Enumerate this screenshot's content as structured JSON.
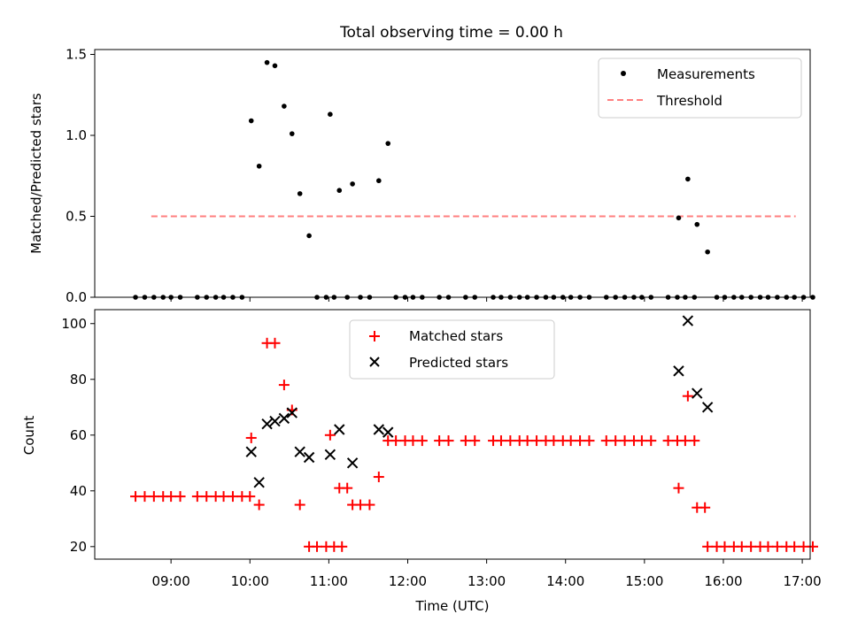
{
  "title": "Total observing time = 0.00 h",
  "chart_data": [
    {
      "type": "scatter",
      "ylabel": "Matched/Predicted stars",
      "ylim": [
        0,
        1.53
      ],
      "yticks": [
        0,
        0.5,
        1.0,
        1.5
      ],
      "ytick_labels": [
        "0.0",
        "0.5",
        "1.0",
        "1.5"
      ],
      "legend": {
        "position": "upper right",
        "entries": [
          "Measurements",
          "Threshold"
        ]
      },
      "series": [
        {
          "name": "Measurements",
          "marker": "dot",
          "color": "#000000",
          "points": [
            [
              "08:33",
              0
            ],
            [
              "08:40",
              0
            ],
            [
              "08:47",
              0
            ],
            [
              "08:54",
              0
            ],
            [
              "09:00",
              0
            ],
            [
              "09:07",
              0
            ],
            [
              "09:20",
              0
            ],
            [
              "09:27",
              0
            ],
            [
              "09:34",
              0
            ],
            [
              "09:40",
              0
            ],
            [
              "09:47",
              0
            ],
            [
              "09:54",
              0
            ],
            [
              "10:01",
              1.09
            ],
            [
              "10:07",
              0.81
            ],
            [
              "10:13",
              1.45
            ],
            [
              "10:19",
              1.43
            ],
            [
              "10:26",
              1.18
            ],
            [
              "10:32",
              1.01
            ],
            [
              "10:38",
              0.64
            ],
            [
              "10:45",
              0.38
            ],
            [
              "10:51",
              0
            ],
            [
              "10:58",
              0
            ],
            [
              "11:04",
              0
            ],
            [
              "11:01",
              1.13
            ],
            [
              "11:08",
              0.66
            ],
            [
              "11:18",
              0.7
            ],
            [
              "11:14",
              0
            ],
            [
              "11:24",
              0
            ],
            [
              "11:31",
              0
            ],
            [
              "11:38",
              0.72
            ],
            [
              "11:45",
              0.95
            ],
            [
              "11:51",
              0
            ],
            [
              "11:58",
              0
            ],
            [
              "12:04",
              0
            ],
            [
              "12:11",
              0
            ],
            [
              "12:24",
              0
            ],
            [
              "12:31",
              0
            ],
            [
              "12:44",
              0
            ],
            [
              "12:51",
              0
            ],
            [
              "13:05",
              0
            ],
            [
              "13:11",
              0
            ],
            [
              "13:18",
              0
            ],
            [
              "13:25",
              0
            ],
            [
              "13:31",
              0
            ],
            [
              "13:38",
              0
            ],
            [
              "13:45",
              0
            ],
            [
              "13:51",
              0
            ],
            [
              "13:58",
              0
            ],
            [
              "14:04",
              0
            ],
            [
              "14:11",
              0
            ],
            [
              "14:18",
              0
            ],
            [
              "14:31",
              0
            ],
            [
              "14:38",
              0
            ],
            [
              "14:45",
              0
            ],
            [
              "14:52",
              0
            ],
            [
              "14:58",
              0
            ],
            [
              "15:05",
              0
            ],
            [
              "15:18",
              0
            ],
            [
              "15:25",
              0
            ],
            [
              "15:31",
              0
            ],
            [
              "15:38",
              0
            ],
            [
              "15:26",
              0.49
            ],
            [
              "15:33",
              0.73
            ],
            [
              "15:40",
              0.45
            ],
            [
              "15:48",
              0.28
            ],
            [
              "15:55",
              0
            ],
            [
              "16:01",
              0
            ],
            [
              "16:08",
              0
            ],
            [
              "16:14",
              0
            ],
            [
              "16:21",
              0
            ],
            [
              "16:28",
              0
            ],
            [
              "16:34",
              0
            ],
            [
              "16:41",
              0
            ],
            [
              "16:48",
              0
            ],
            [
              "16:54",
              0
            ],
            [
              "17:01",
              0
            ],
            [
              "17:08",
              0
            ]
          ]
        },
        {
          "name": "Threshold",
          "style": "dashed",
          "color": "#ff7f7f",
          "x": [
            "08:45",
            "16:55"
          ],
          "value": 0.5
        }
      ]
    },
    {
      "type": "scatter",
      "xlabel": "Time (UTC)",
      "ylabel": "Count",
      "ylim": [
        15.5,
        105
      ],
      "yticks": [
        20,
        40,
        60,
        80,
        100
      ],
      "ytick_labels": [
        "20",
        "40",
        "60",
        "80",
        "100"
      ],
      "xticks": [
        "09:00",
        "10:00",
        "11:00",
        "12:00",
        "13:00",
        "14:00",
        "15:00",
        "16:00",
        "17:00"
      ],
      "xlim": [
        "08:02",
        "17:06"
      ],
      "legend": {
        "position": "upper center",
        "entries": [
          "Matched stars",
          "Predicted stars"
        ]
      },
      "series": [
        {
          "name": "Matched stars",
          "marker": "plus",
          "color": "#ff0000",
          "points": [
            [
              "08:33",
              38
            ],
            [
              "08:40",
              38
            ],
            [
              "08:47",
              38
            ],
            [
              "08:54",
              38
            ],
            [
              "09:00",
              38
            ],
            [
              "09:07",
              38
            ],
            [
              "09:20",
              38
            ],
            [
              "09:27",
              38
            ],
            [
              "09:34",
              38
            ],
            [
              "09:40",
              38
            ],
            [
              "09:47",
              38
            ],
            [
              "09:54",
              38
            ],
            [
              "10:00",
              38
            ],
            [
              "10:01",
              59
            ],
            [
              "10:07",
              35
            ],
            [
              "10:13",
              93
            ],
            [
              "10:19",
              93
            ],
            [
              "10:26",
              78
            ],
            [
              "10:32",
              69
            ],
            [
              "10:38",
              35
            ],
            [
              "10:45",
              20
            ],
            [
              "10:51",
              20
            ],
            [
              "10:58",
              20
            ],
            [
              "11:04",
              20
            ],
            [
              "11:10",
              20
            ],
            [
              "11:01",
              60
            ],
            [
              "11:08",
              41
            ],
            [
              "11:14",
              41
            ],
            [
              "11:18",
              35
            ],
            [
              "11:24",
              35
            ],
            [
              "11:31",
              35
            ],
            [
              "11:38",
              45
            ],
            [
              "11:45",
              58
            ],
            [
              "11:51",
              58
            ],
            [
              "11:58",
              58
            ],
            [
              "12:04",
              58
            ],
            [
              "12:11",
              58
            ],
            [
              "12:24",
              58
            ],
            [
              "12:31",
              58
            ],
            [
              "12:44",
              58
            ],
            [
              "12:51",
              58
            ],
            [
              "13:05",
              58
            ],
            [
              "13:11",
              58
            ],
            [
              "13:18",
              58
            ],
            [
              "13:25",
              58
            ],
            [
              "13:31",
              58
            ],
            [
              "13:38",
              58
            ],
            [
              "13:45",
              58
            ],
            [
              "13:51",
              58
            ],
            [
              "13:58",
              58
            ],
            [
              "14:04",
              58
            ],
            [
              "14:11",
              58
            ],
            [
              "14:18",
              58
            ],
            [
              "14:31",
              58
            ],
            [
              "14:38",
              58
            ],
            [
              "14:45",
              58
            ],
            [
              "14:52",
              58
            ],
            [
              "14:58",
              58
            ],
            [
              "15:05",
              58
            ],
            [
              "15:18",
              58
            ],
            [
              "15:25",
              58
            ],
            [
              "15:31",
              58
            ],
            [
              "15:38",
              58
            ],
            [
              "15:26",
              41
            ],
            [
              "15:33",
              74
            ],
            [
              "15:40",
              34
            ],
            [
              "15:46",
              34
            ],
            [
              "15:48",
              20
            ],
            [
              "15:55",
              20
            ],
            [
              "16:01",
              20
            ],
            [
              "16:08",
              20
            ],
            [
              "16:14",
              20
            ],
            [
              "16:21",
              20
            ],
            [
              "16:28",
              20
            ],
            [
              "16:34",
              20
            ],
            [
              "16:41",
              20
            ],
            [
              "16:48",
              20
            ],
            [
              "16:54",
              20
            ],
            [
              "17:01",
              20
            ],
            [
              "17:08",
              20
            ]
          ]
        },
        {
          "name": "Predicted stars",
          "marker": "x",
          "color": "#000000",
          "points": [
            [
              "10:01",
              54
            ],
            [
              "10:07",
              43
            ],
            [
              "10:13",
              64
            ],
            [
              "10:19",
              65
            ],
            [
              "10:26",
              66
            ],
            [
              "10:32",
              68
            ],
            [
              "10:38",
              54
            ],
            [
              "10:45",
              52
            ],
            [
              "11:01",
              53
            ],
            [
              "11:08",
              62
            ],
            [
              "11:18",
              50
            ],
            [
              "11:38",
              62
            ],
            [
              "11:45",
              61
            ],
            [
              "15:26",
              83
            ],
            [
              "15:33",
              101
            ],
            [
              "15:40",
              75
            ],
            [
              "15:48",
              70
            ]
          ]
        }
      ]
    }
  ]
}
